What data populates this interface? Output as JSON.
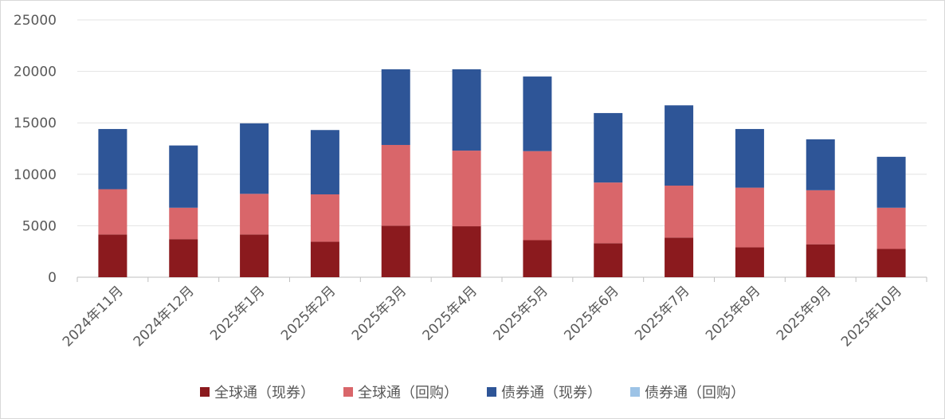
{
  "chart_data": {
    "type": "bar",
    "stacked": true,
    "categories": [
      "2024年11月",
      "2024年12月",
      "2025年1月",
      "2025年2月",
      "2025年3月",
      "2025年4月",
      "2025年5月",
      "2025年6月",
      "2025年7月",
      "2025年8月",
      "2025年9月",
      "2025年10月"
    ],
    "series": [
      {
        "name": "全球通（现券）",
        "color": "#8b1a1e",
        "values": [
          4150,
          3700,
          4150,
          3450,
          5000,
          4950,
          3600,
          3300,
          3850,
          2900,
          3200,
          2750
        ]
      },
      {
        "name": "全球通（回购）",
        "color": "#d9666a",
        "values": [
          4400,
          3050,
          3950,
          4600,
          7850,
          7350,
          8650,
          5900,
          5050,
          5800,
          5250,
          4000
        ]
      },
      {
        "name": "债券通（现券）",
        "color": "#2e5597",
        "values": [
          5850,
          6050,
          6850,
          6250,
          7350,
          7900,
          7250,
          6750,
          7800,
          5700,
          4950,
          4950
        ]
      },
      {
        "name": "债券通（回购）",
        "color": "#9dc3e6",
        "values": [
          0,
          0,
          0,
          0,
          0,
          0,
          0,
          0,
          0,
          0,
          0,
          0
        ]
      }
    ],
    "ylim": [
      0,
      25000
    ],
    "yticks": [
      0,
      5000,
      10000,
      15000,
      20000,
      25000
    ],
    "grid": true,
    "legend_position": "bottom"
  }
}
